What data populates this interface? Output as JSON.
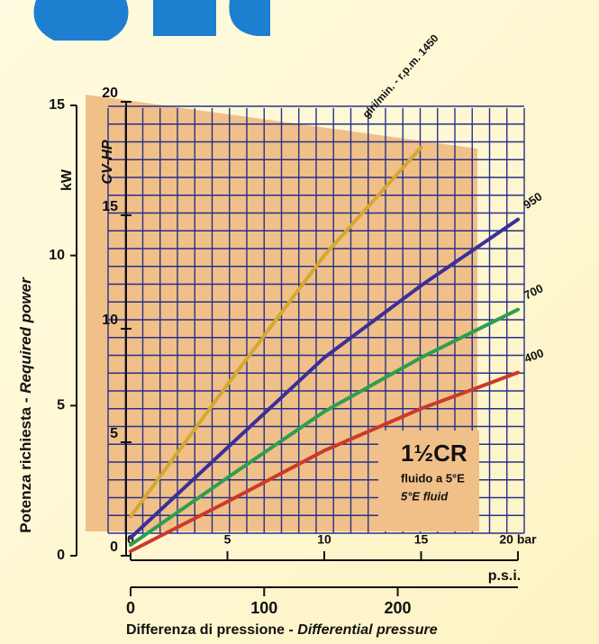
{
  "chart_data": {
    "type": "line",
    "title": "1½CR",
    "subtitle": "fluido a 5°E",
    "note": "5°E fluid",
    "rpm_label": "giri/min. - r.p.m.",
    "y_label": "Potenza richiesta - ",
    "y_label_en": "Required power",
    "x_label": "Differenza di pressione - ",
    "x_label_en": "Differential pressure",
    "y_unit": "kW",
    "y2_unit": "CV-HP",
    "x2_unit": "p.s.i.",
    "x": [
      0,
      5,
      10,
      15,
      20
    ],
    "xlim": [
      0,
      20
    ],
    "xticks": [
      0,
      5,
      10,
      15,
      {
        "value": 20,
        "label": "20 bar"
      }
    ],
    "x2lim": [
      0,
      290
    ],
    "x2ticks": [
      0,
      100,
      200
    ],
    "ylim": [
      0,
      15
    ],
    "yticks": [
      0,
      5,
      10,
      15
    ],
    "y2lim": [
      0,
      20
    ],
    "y2ticks": [
      0,
      5,
      10,
      15,
      20
    ],
    "grid": true,
    "series": [
      {
        "name": "1450",
        "color": "#d4a832",
        "values": [
          1.3,
          5.7,
          10.0,
          13.6,
          null
        ]
      },
      {
        "name": "950",
        "color": "#3b2f9a",
        "values": [
          0.6,
          3.6,
          6.6,
          9.0,
          11.2
        ]
      },
      {
        "name": "700",
        "color": "#2e9e4f",
        "values": [
          0.36,
          2.6,
          4.8,
          6.6,
          8.2
        ]
      },
      {
        "name": "400",
        "color": "#cc3a2a",
        "values": [
          0.15,
          1.8,
          3.5,
          4.9,
          6.1
        ]
      }
    ]
  }
}
